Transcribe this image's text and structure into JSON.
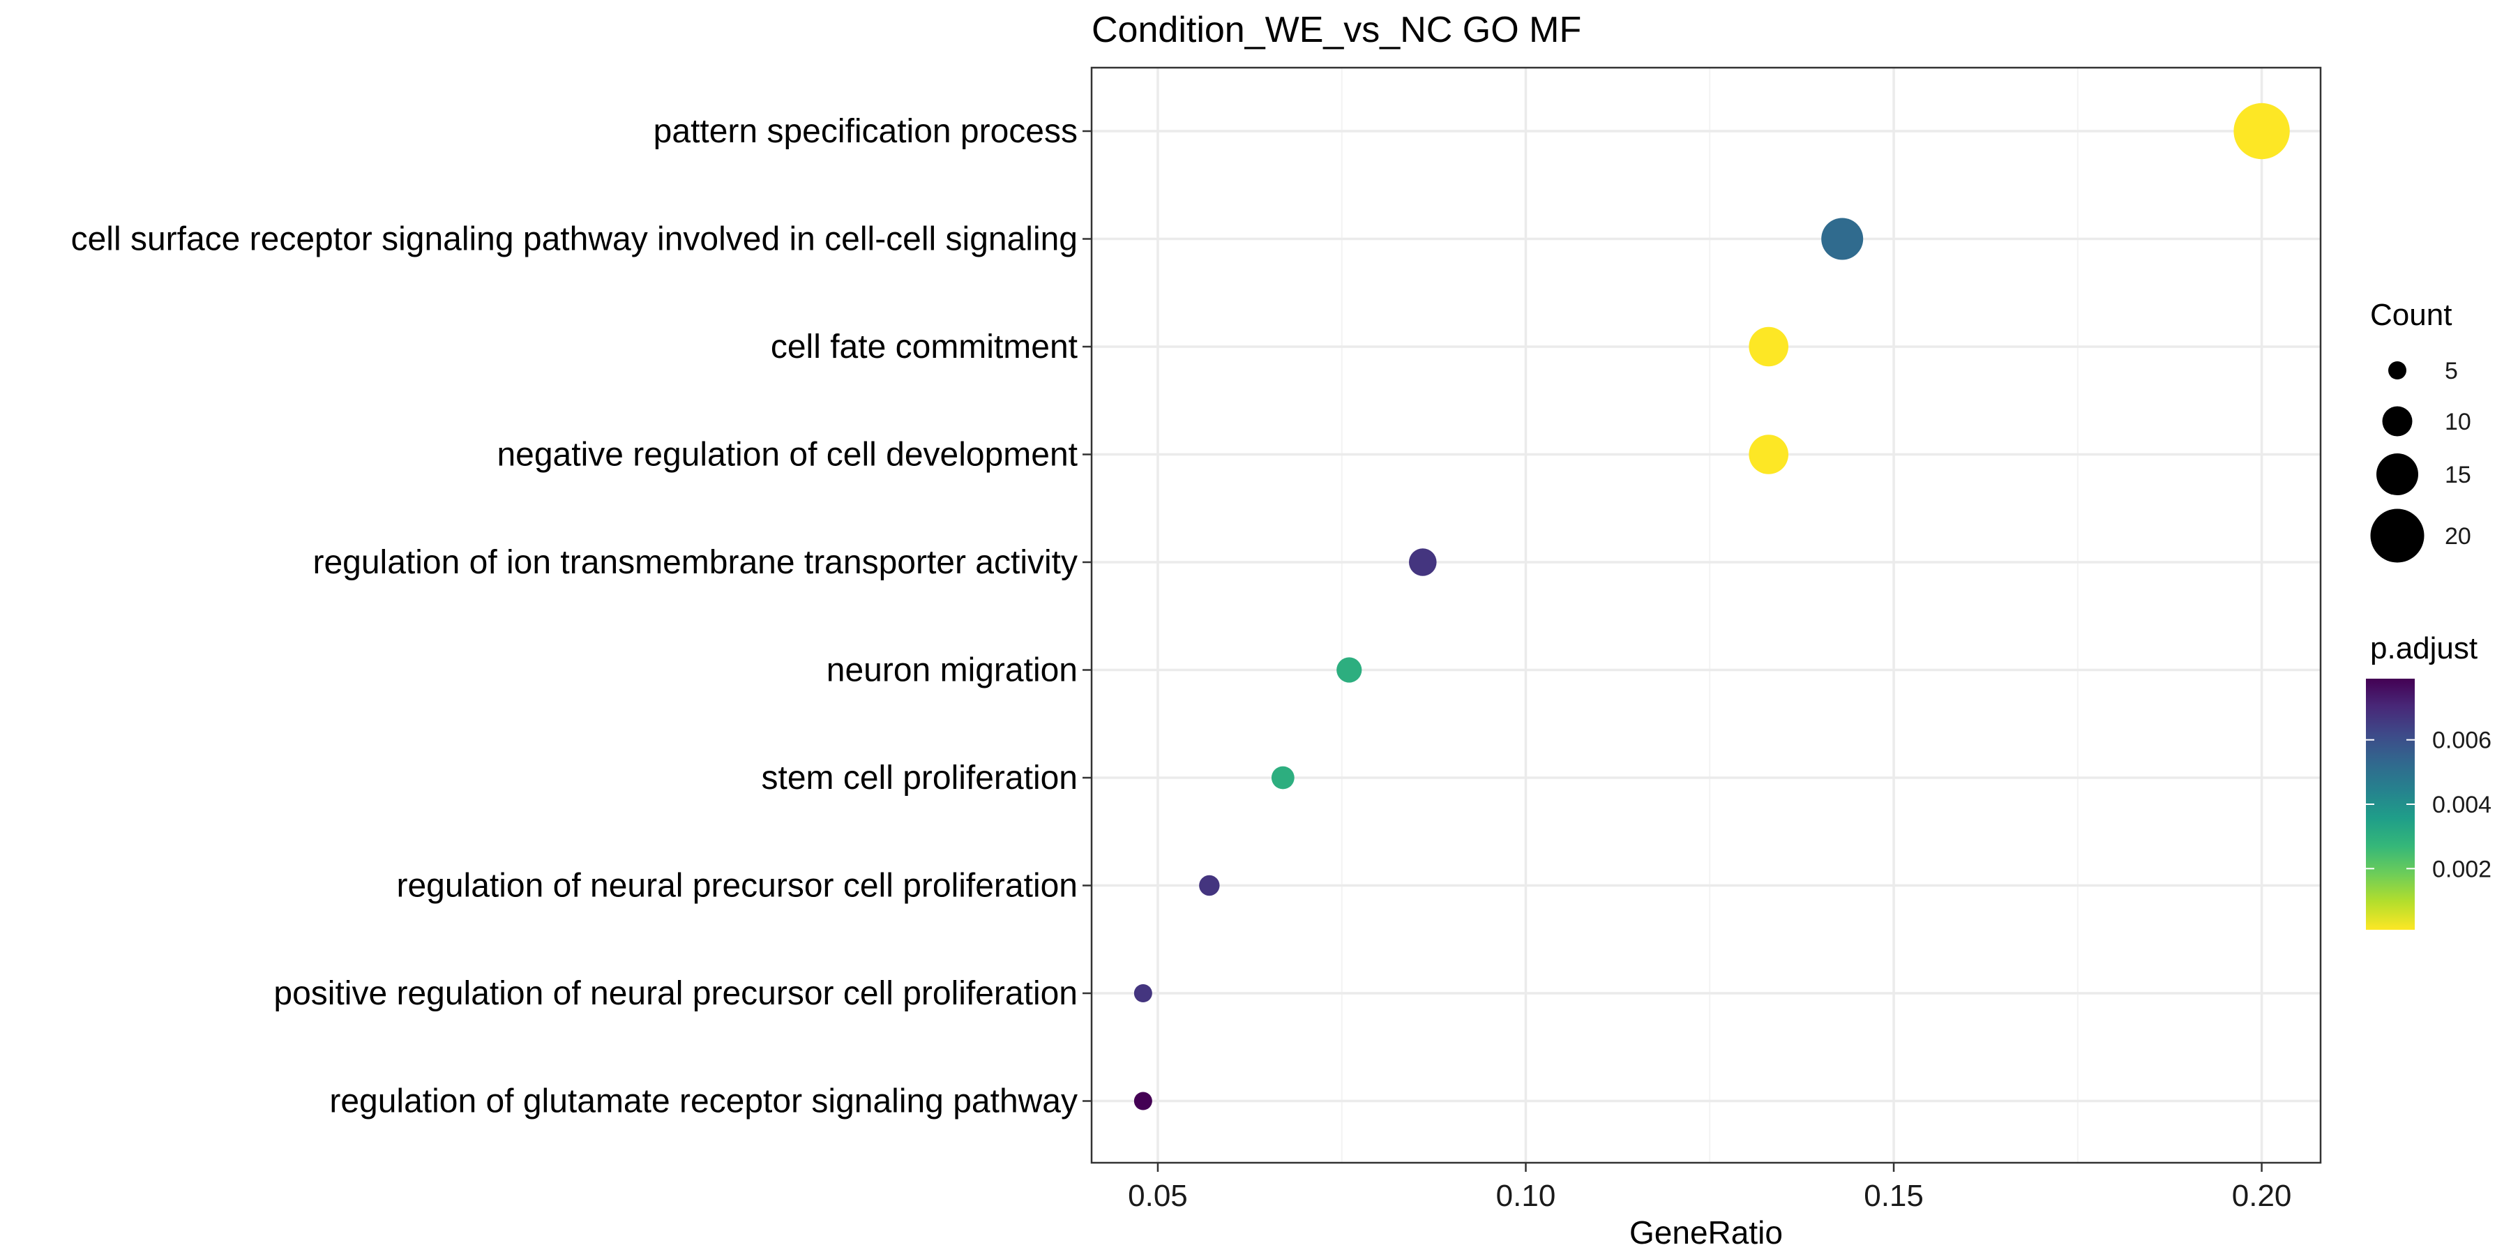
{
  "chart_data": {
    "type": "scatter",
    "title": "Condition_WE_vs_NC GO MF",
    "xlabel": "GeneRatio",
    "ylabel": "",
    "xlim": [
      0.041,
      0.208
    ],
    "x_ticks": [
      0.05,
      0.1,
      0.15,
      0.2
    ],
    "x_tick_labels": [
      "0.05",
      "0.10",
      "0.15",
      "0.20"
    ],
    "grid": true,
    "legend_placement": "right",
    "categories": [
      "pattern specification process",
      "cell surface receptor signaling pathway involved in cell-cell signaling",
      "cell fate commitment",
      "negative regulation of cell development",
      "regulation of ion transmembrane transporter activity",
      "neuron migration",
      "stem cell proliferation",
      "regulation of neural precursor cell proliferation",
      "positive regulation of neural precursor cell proliferation",
      "regulation of glutamate receptor signaling pathway"
    ],
    "points": [
      {
        "category": "pattern specification process",
        "gene_ratio": 0.2,
        "count": 21,
        "p_adjust": 0.0001
      },
      {
        "category": "cell surface receptor signaling pathway involved in cell-cell signaling",
        "gene_ratio": 0.143,
        "count": 15,
        "p_adjust": 0.0052
      },
      {
        "category": "cell fate commitment",
        "gene_ratio": 0.133,
        "count": 14,
        "p_adjust": 0.0001
      },
      {
        "category": "negative regulation of cell development",
        "gene_ratio": 0.133,
        "count": 14,
        "p_adjust": 0.0001
      },
      {
        "category": "regulation of ion transmembrane transporter activity",
        "gene_ratio": 0.086,
        "count": 9,
        "p_adjust": 0.0067
      },
      {
        "category": "neuron migration",
        "gene_ratio": 0.076,
        "count": 8,
        "p_adjust": 0.003
      },
      {
        "category": "stem cell proliferation",
        "gene_ratio": 0.067,
        "count": 7,
        "p_adjust": 0.003
      },
      {
        "category": "regulation of neural precursor cell proliferation",
        "gene_ratio": 0.057,
        "count": 6,
        "p_adjust": 0.0067
      },
      {
        "category": "positive regulation of neural precursor cell proliferation",
        "gene_ratio": 0.048,
        "count": 5,
        "p_adjust": 0.0067
      },
      {
        "category": "regulation of glutamate receptor signaling pathway",
        "gene_ratio": 0.048,
        "count": 5,
        "p_adjust": 0.0079
      }
    ],
    "size_legend": {
      "title": "Count",
      "values": [
        5,
        10,
        15,
        20
      ],
      "labels": [
        "5",
        "10",
        "15",
        "20"
      ]
    },
    "color_legend": {
      "title": "p.adjust",
      "range": [
        0.0001,
        0.0079
      ],
      "ticks": [
        0.002,
        0.004,
        0.006
      ],
      "tick_labels": [
        "0.002",
        "0.004",
        "0.006"
      ],
      "colormap": "viridis",
      "low_color": "#FDE725",
      "high_color": "#440154"
    },
    "colors": {
      "panel_border": "#333333",
      "grid_major": "#EBEBEB",
      "grid_minor": "#F3F3F3"
    }
  }
}
